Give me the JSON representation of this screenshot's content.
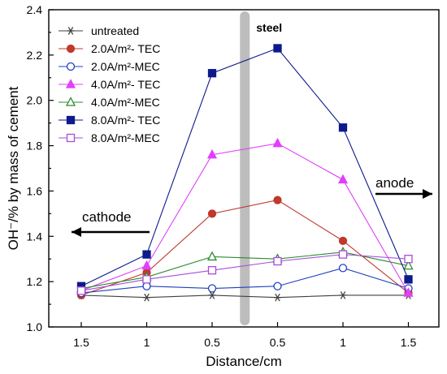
{
  "chart_data": {
    "type": "line",
    "categories": [
      "1.5",
      "1",
      "0.5",
      "0.5",
      "1",
      "1.5"
    ],
    "xlabel": "Distance/cm",
    "ylabel": "OH⁻/% by mass of cement",
    "ylim": [
      1.0,
      2.4
    ],
    "yticks": [
      "1.0",
      "1.2",
      "1.4",
      "1.6",
      "1.8",
      "2.0",
      "2.2",
      "2.4"
    ],
    "grid": false,
    "legend_position": "top-left",
    "annotations": {
      "steel": "steel",
      "cathode": "cathode",
      "anode": "anode"
    },
    "series": [
      {
        "name": "untreated",
        "color": "#404040",
        "marker": "asterisk",
        "values": [
          1.14,
          1.13,
          1.14,
          1.13,
          1.14,
          1.14
        ]
      },
      {
        "name": "2.0A/m²- TEC",
        "color": "#c0392b",
        "marker": "filled-circle",
        "values": [
          1.14,
          1.24,
          1.5,
          1.56,
          1.38,
          1.15
        ]
      },
      {
        "name": "2.0A/m²-MEC",
        "color": "#1f3fbf",
        "marker": "open-circle",
        "values": [
          1.15,
          1.18,
          1.17,
          1.18,
          1.26,
          1.17
        ]
      },
      {
        "name": "4.0A/m²- TEC",
        "color": "#e040fb",
        "marker": "filled-triangle",
        "values": [
          1.16,
          1.27,
          1.76,
          1.81,
          1.65,
          1.15
        ]
      },
      {
        "name": "4.0A/m²-MEC",
        "color": "#2e8b2e",
        "marker": "open-triangle",
        "values": [
          1.17,
          1.22,
          1.31,
          1.3,
          1.33,
          1.27
        ]
      },
      {
        "name": "8.0A/m²- TEC",
        "color": "#0d1a8c",
        "marker": "filled-square",
        "values": [
          1.18,
          1.32,
          2.12,
          2.23,
          1.88,
          1.21
        ]
      },
      {
        "name": "8.0A/m²-MEC",
        "color": "#a64dd9",
        "marker": "open-square",
        "values": [
          1.16,
          1.21,
          1.25,
          1.29,
          1.32,
          1.3
        ]
      }
    ]
  }
}
